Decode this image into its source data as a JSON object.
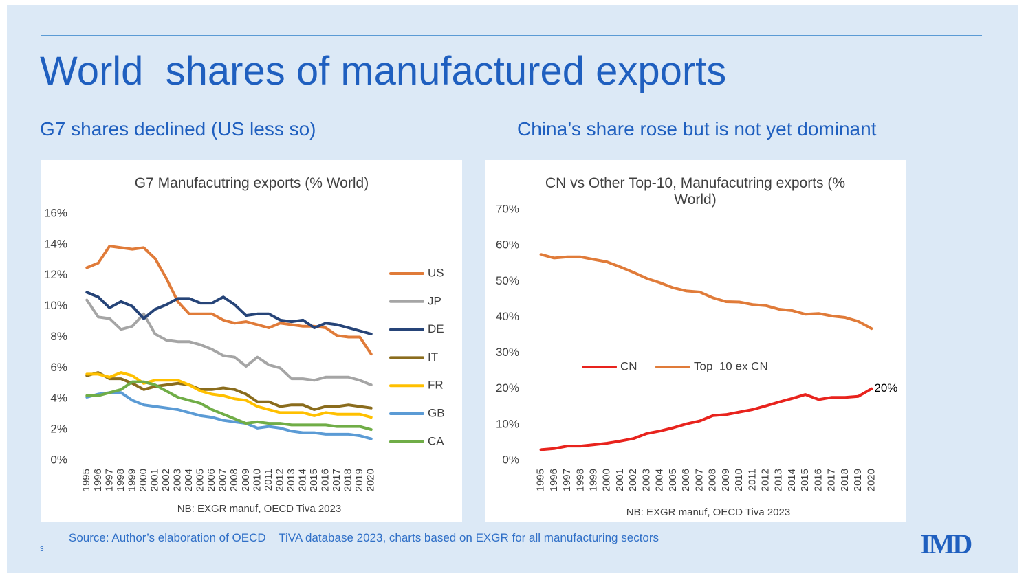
{
  "title": "World  shares of manufactured exports",
  "left_heading": "G7 shares declined (US less so)",
  "right_heading": "China’s share rose but is not yet dominant",
  "source": "Source: Author’s elaboration of OECD    TiVA database 2023, charts based on EXGR for all manufacturing sectors",
  "page_number": "3",
  "logo": "IMD",
  "chart_data": [
    {
      "type": "line",
      "title": "G7 Manufacutring exports (% World)",
      "note": "NB: EXGR manuf, OECD Tiva 2023",
      "categories": [
        "1995",
        "1996",
        "1997",
        "1998",
        "1999",
        "2000",
        "2001",
        "2002",
        "2003",
        "2004",
        "2005",
        "2006",
        "2007",
        "2008",
        "2009",
        "2010",
        "2011",
        "2012",
        "2013",
        "2014",
        "2015",
        "2016",
        "2017",
        "2018",
        "2019",
        "2020"
      ],
      "ylim": [
        0,
        16
      ],
      "yticks": [
        {
          "value": 0,
          "label": "0%"
        },
        {
          "value": 2,
          "label": "2%"
        },
        {
          "value": 4,
          "label": "4%"
        },
        {
          "value": 6,
          "label": "6%"
        },
        {
          "value": 8,
          "label": "8%"
        },
        {
          "value": 10,
          "label": "10%"
        },
        {
          "value": 12,
          "label": "12%"
        },
        {
          "value": 14,
          "label": "14%"
        },
        {
          "value": 16,
          "label": "16%"
        }
      ],
      "grid": false,
      "legend": "right",
      "series": [
        {
          "name": "US",
          "color": "#e07b39",
          "values": [
            12.5,
            12.8,
            13.9,
            13.8,
            13.7,
            13.8,
            13.1,
            11.8,
            10.3,
            9.5,
            9.5,
            9.5,
            9.1,
            8.9,
            9.0,
            8.8,
            8.6,
            8.9,
            8.8,
            8.7,
            8.7,
            8.6,
            8.1,
            8.0,
            8.0,
            6.9
          ]
        },
        {
          "name": "JP",
          "color": "#a5a5a5",
          "values": [
            10.4,
            9.3,
            9.2,
            8.5,
            8.7,
            9.5,
            8.2,
            7.8,
            7.7,
            7.7,
            7.5,
            7.2,
            6.8,
            6.7,
            6.1,
            6.7,
            6.2,
            6.0,
            5.3,
            5.3,
            5.2,
            5.4,
            5.4,
            5.4,
            5.2,
            4.9
          ]
        },
        {
          "name": "DE",
          "color": "#264478",
          "values": [
            10.9,
            10.6,
            9.9,
            10.3,
            10.0,
            9.2,
            9.8,
            10.1,
            10.5,
            10.5,
            10.2,
            10.2,
            10.6,
            10.1,
            9.4,
            9.5,
            9.5,
            9.1,
            9.0,
            9.1,
            8.6,
            8.9,
            8.8,
            8.6,
            8.4,
            8.2
          ]
        },
        {
          "name": "IT",
          "color": "#8a6c1d",
          "values": [
            5.5,
            5.7,
            5.3,
            5.3,
            5.0,
            4.6,
            4.8,
            4.9,
            5.0,
            4.9,
            4.6,
            4.6,
            4.7,
            4.6,
            4.3,
            3.8,
            3.8,
            3.5,
            3.6,
            3.6,
            3.3,
            3.5,
            3.5,
            3.6,
            3.5,
            3.4
          ]
        },
        {
          "name": "FR",
          "color": "#ffc000",
          "values": [
            5.6,
            5.6,
            5.4,
            5.7,
            5.5,
            5.0,
            5.2,
            5.2,
            5.2,
            4.9,
            4.5,
            4.3,
            4.2,
            4.0,
            3.9,
            3.5,
            3.3,
            3.1,
            3.1,
            3.1,
            2.9,
            3.1,
            3.0,
            3.0,
            3.0,
            2.8
          ]
        },
        {
          "name": "GB",
          "color": "#5b9bd5",
          "values": [
            4.1,
            4.3,
            4.4,
            4.4,
            3.9,
            3.6,
            3.5,
            3.4,
            3.3,
            3.1,
            2.9,
            2.8,
            2.6,
            2.5,
            2.4,
            2.1,
            2.2,
            2.1,
            1.9,
            1.8,
            1.8,
            1.7,
            1.7,
            1.7,
            1.6,
            1.4
          ]
        },
        {
          "name": "CA",
          "color": "#70ad47",
          "values": [
            4.2,
            4.2,
            4.4,
            4.6,
            5.1,
            5.1,
            4.9,
            4.5,
            4.1,
            3.9,
            3.7,
            3.3,
            3.0,
            2.7,
            2.4,
            2.5,
            2.4,
            2.4,
            2.3,
            2.3,
            2.3,
            2.3,
            2.2,
            2.2,
            2.2,
            2.0
          ]
        }
      ]
    },
    {
      "type": "line",
      "title": "CN vs Other Top-10, Manufacutring exports (% World)",
      "note": "NB: EXGR manuf, OECD Tiva 2023",
      "categories": [
        "1995",
        "1996",
        "1997",
        "1998",
        "1999",
        "2000",
        "2001",
        "2002",
        "2003",
        "2004",
        "2005",
        "2006",
        "2007",
        "2008",
        "2009",
        "2010",
        "2011",
        "2012",
        "2013",
        "2014",
        "2015",
        "2016",
        "2017",
        "2018",
        "2019",
        "2020"
      ],
      "ylim": [
        0,
        70
      ],
      "yticks": [
        {
          "value": 0,
          "label": "0%"
        },
        {
          "value": 10,
          "label": "10%"
        },
        {
          "value": 20,
          "label": "20%"
        },
        {
          "value": 30,
          "label": "30%"
        },
        {
          "value": 40,
          "label": "40%"
        },
        {
          "value": 50,
          "label": "50%"
        },
        {
          "value": 60,
          "label": "60%"
        },
        {
          "value": 70,
          "label": "70%"
        }
      ],
      "grid": false,
      "legend": "center",
      "series": [
        {
          "name": "CN",
          "color": "#e8231d",
          "values": [
            3,
            3.3,
            4,
            4,
            4.4,
            4.8,
            5.4,
            6.1,
            7.5,
            8.2,
            9.1,
            10.2,
            11,
            12.5,
            12.8,
            13.5,
            14.2,
            15.2,
            16.3,
            17.3,
            18.4,
            17,
            17.6,
            17.6,
            17.9,
            20
          ],
          "value_labels": [
            null,
            null,
            null,
            null,
            null,
            null,
            null,
            null,
            null,
            null,
            null,
            null,
            null,
            null,
            null,
            null,
            null,
            null,
            null,
            null,
            null,
            null,
            null,
            null,
            null,
            "20%"
          ]
        },
        {
          "name": "Top  10 ex CN",
          "color": "#e07b39",
          "values": [
            57.5,
            56.5,
            56.8,
            56.8,
            56.1,
            55.4,
            54,
            52.5,
            50.8,
            49.6,
            48.2,
            47.3,
            47,
            45.4,
            44.3,
            44.2,
            43.5,
            43.2,
            42.2,
            41.8,
            40.8,
            41,
            40.3,
            39.9,
            38.8,
            36.8
          ]
        }
      ]
    }
  ]
}
